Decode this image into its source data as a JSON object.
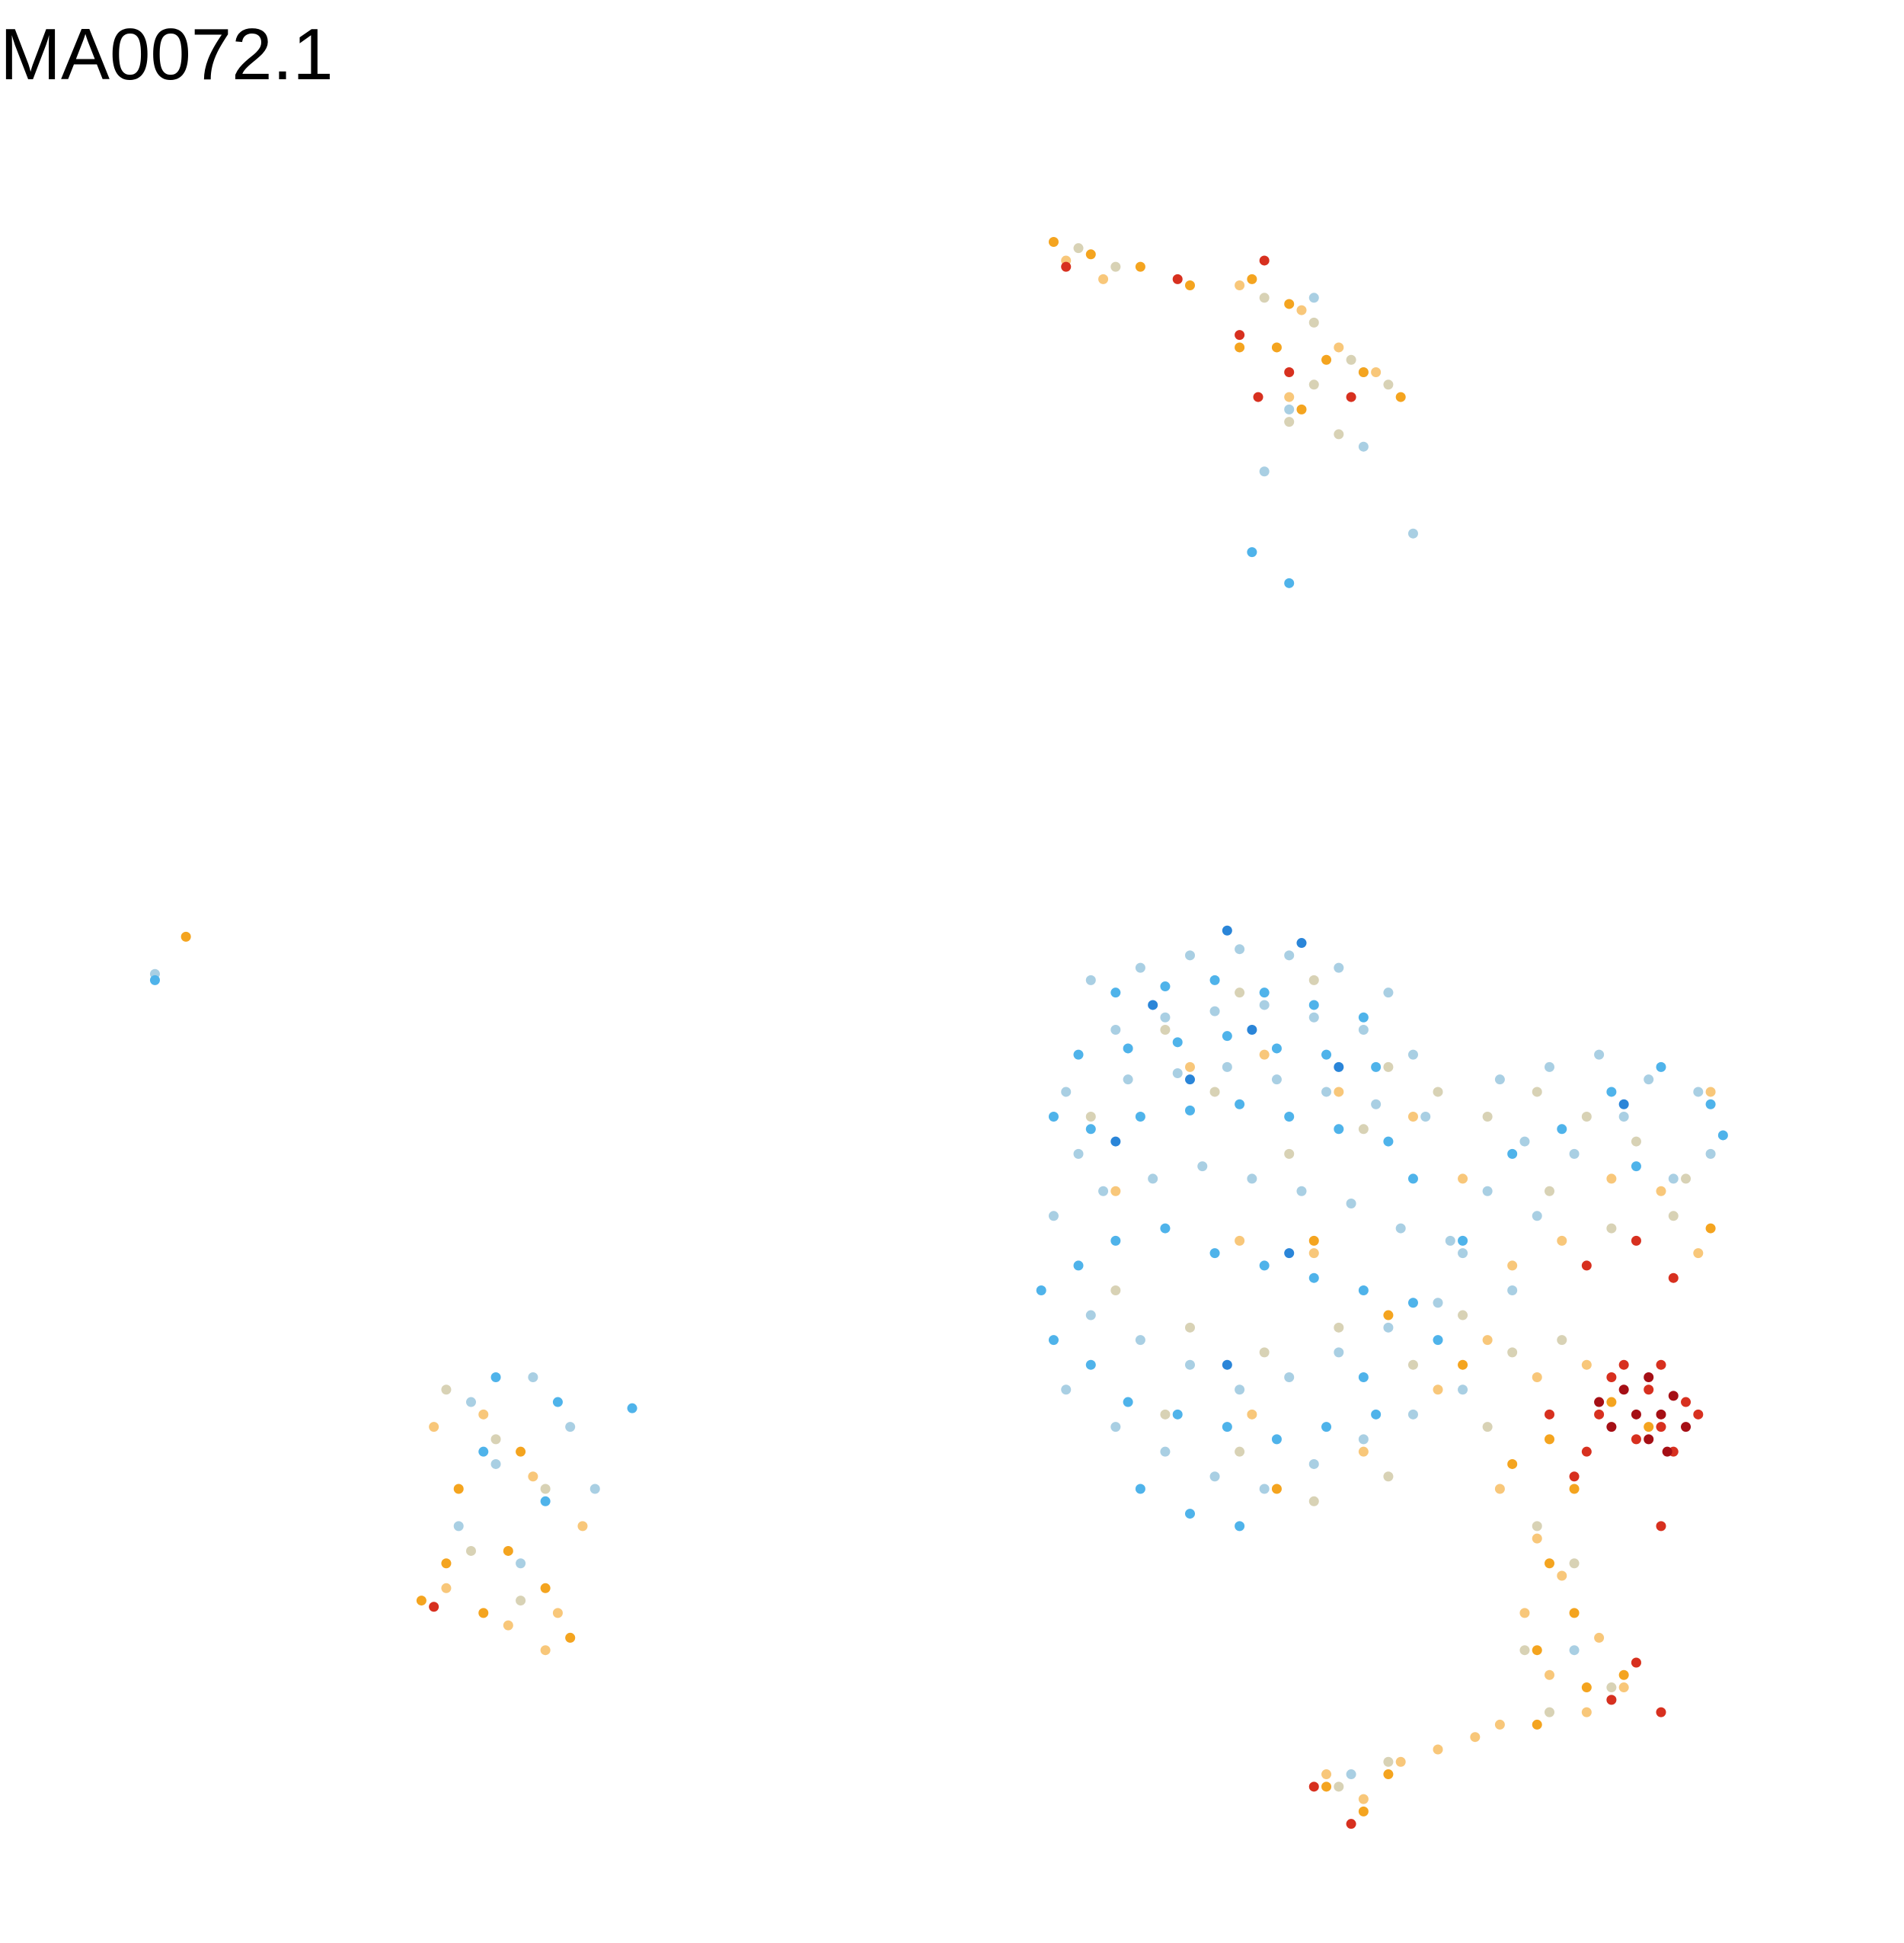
{
  "chart_data": {
    "type": "scatter",
    "title": "MA0072.1",
    "xlim": [
      0,
      1536
    ],
    "ylim": [
      1566,
      0
    ],
    "series": [
      {
        "color": "#a9cfe3",
        "x": [
          880,
          920,
          960,
          1000,
          1040,
          1080,
          1120,
          900,
          940,
          980,
          1020,
          1060,
          1100,
          1140,
          860,
          870,
          910,
          950,
          990,
          1030,
          1070,
          1110,
          1150,
          850,
          890,
          930,
          970,
          1010,
          1050,
          1090,
          1130,
          1170,
          1210,
          1250,
          1290,
          1330,
          1370,
          1230,
          1270,
          1310,
          1350,
          1380,
          1200,
          1240,
          1180,
          1220,
          880,
          920,
          960,
          1000,
          1040,
          1080,
          1120,
          1160,
          860,
          900,
          940,
          980,
          1020,
          1060,
          1100,
          1140,
          1180,
          430,
          380,
          460,
          400,
          480,
          370,
          420,
          1060,
          1100,
          1040,
          1020,
          125,
          1140,
          1100,
          1270,
          1300,
          1090
        ],
        "y": [
          790,
          780,
          770,
          765,
          770,
          780,
          800,
          830,
          820,
          815,
          810,
          820,
          830,
          850,
          880,
          930,
          870,
          865,
          860,
          870,
          880,
          890,
          900,
          980,
          960,
          950,
          940,
          950,
          960,
          970,
          990,
          1000,
          870,
          860,
          850,
          870,
          880,
          920,
          930,
          900,
          950,
          930,
          960,
          980,
          1010,
          1040,
          1060,
          1080,
          1100,
          1120,
          1110,
          1090,
          1070,
          1050,
          1120,
          1150,
          1170,
          1190,
          1200,
          1180,
          1160,
          1140,
          1120,
          1110,
          1130,
          1150,
          1180,
          1200,
          1230,
          1260,
          240,
          300,
          330,
          380,
          785,
          430,
          360,
          1330,
          1370,
          1430
        ]
      },
      {
        "color": "#4fb3ea",
        "x": [
          900,
          940,
          980,
          1020,
          1060,
          1100,
          870,
          910,
          950,
          990,
          1030,
          1070,
          1110,
          850,
          880,
          920,
          960,
          1000,
          1040,
          1080,
          1120,
          840,
          870,
          900,
          940,
          980,
          1020,
          1060,
          1100,
          1140,
          850,
          880,
          910,
          950,
          990,
          1030,
          1070,
          1110,
          920,
          960,
          1000,
          1300,
          1340,
          1380,
          1260,
          1320,
          1390,
          1180,
          1220,
          1140,
          400,
          450,
          510,
          390,
          440,
          1040,
          1010,
          125,
          1100,
          1160
        ],
        "y": [
          800,
          795,
          790,
          800,
          810,
          820,
          850,
          845,
          840,
          835,
          845,
          850,
          860,
          900,
          910,
          900,
          895,
          890,
          900,
          910,
          920,
          1040,
          1020,
          1000,
          990,
          1010,
          1020,
          1030,
          1040,
          1050,
          1080,
          1100,
          1130,
          1140,
          1150,
          1160,
          1150,
          1140,
          1200,
          1220,
          1230,
          880,
          860,
          890,
          910,
          940,
          915,
          1000,
          930,
          950,
          1110,
          1130,
          1135,
          1170,
          1210,
          470,
          445,
          790,
          1110,
          1080
        ]
      },
      {
        "color": "#2a85d8",
        "x": [
          990,
          1050,
          930,
          1010,
          1080,
          960,
          900,
          1040,
          990,
          1310
        ],
        "y": [
          750,
          760,
          810,
          830,
          860,
          870,
          920,
          1010,
          1100,
          890
        ]
      },
      {
        "color": "#d8d2b5",
        "x": [
          940,
          1000,
          1060,
          1120,
          880,
          980,
          1040,
          1100,
          1160,
          1200,
          1240,
          1280,
          1320,
          1360,
          1250,
          1300,
          1350,
          1180,
          1220,
          1260,
          900,
          960,
          1020,
          1080,
          1140,
          1200,
          940,
          1000,
          1060,
          1120,
          870,
          900,
          1020,
          1060,
          1090,
          1120,
          1060,
          1040,
          1080,
          360,
          400,
          440,
          380,
          420,
          460,
          1240,
          1270,
          1230,
          1300,
          1080,
          1120,
          1250
        ],
        "y": [
          830,
          800,
          790,
          860,
          900,
          880,
          930,
          910,
          880,
          900,
          880,
          900,
          920,
          950,
          960,
          990,
          980,
          1060,
          1090,
          1080,
          1040,
          1070,
          1090,
          1070,
          1100,
          1150,
          1140,
          1170,
          1210,
          1190,
          200,
          215,
          240,
          260,
          290,
          310,
          310,
          340,
          350,
          1120,
          1160,
          1200,
          1250,
          1290,
          1320,
          1230,
          1260,
          1330,
          1360,
          1440,
          1420,
          1380
        ]
      },
      {
        "color": "#f8c77a",
        "x": [
          960,
          1020,
          1080,
          1140,
          900,
          1000,
          1060,
          1180,
          1220,
          1260,
          1300,
          1340,
          1370,
          1380,
          1200,
          1240,
          1280,
          1160,
          1010,
          1100,
          1210,
          1240,
          1260,
          1230,
          1290,
          1320,
          1250,
          1280,
          1310,
          1210,
          1070,
          1100,
          1130,
          1160,
          1190,
          860,
          890,
          1000,
          1050,
          1080,
          1110,
          1040,
          350,
          390,
          430,
          470,
          360,
          410,
          450,
          440
        ],
        "y": [
          860,
          850,
          880,
          900,
          960,
          1000,
          1010,
          950,
          1020,
          1000,
          950,
          960,
          1010,
          880,
          1080,
          1110,
          1100,
          1120,
          1140,
          1170,
          1200,
          1240,
          1270,
          1300,
          1320,
          1340,
          1350,
          1380,
          1360,
          1390,
          1430,
          1450,
          1420,
          1410,
          1400,
          210,
          225,
          230,
          250,
          280,
          300,
          320,
          1150,
          1140,
          1190,
          1230,
          1280,
          1310,
          1300,
          1330
        ]
      },
      {
        "color": "#f4a41f",
        "x": [
          850,
          880,
          920,
          960,
          1010,
          1040,
          1030,
          1070,
          1100,
          1130,
          1050,
          1000,
          1060,
          1120,
          1180,
          1220,
          1250,
          1270,
          1300,
          1330,
          1250,
          1270,
          1240,
          1280,
          1310,
          1240,
          1070,
          1100,
          1120,
          1380,
          340,
          360,
          390,
          410,
          440,
          460,
          370,
          420,
          150,
          1030
        ],
        "y": [
          195,
          205,
          215,
          230,
          225,
          245,
          280,
          290,
          300,
          320,
          330,
          280,
          1000,
          1060,
          1100,
          1180,
          1160,
          1200,
          1130,
          1150,
          1260,
          1300,
          1330,
          1360,
          1350,
          1390,
          1440,
          1460,
          1430,
          990,
          1290,
          1260,
          1300,
          1250,
          1280,
          1320,
          1200,
          1170,
          755,
          1200
        ]
      },
      {
        "color": "#d7301f",
        "x": [
          860,
          950,
          1000,
          1020,
          1040,
          1090,
          1015,
          1280,
          1320,
          1350,
          1300,
          1330,
          1360,
          1340,
          1290,
          1320,
          1350,
          1370,
          1310,
          1340,
          1280,
          1270,
          1320,
          1300,
          1340,
          1250,
          1060,
          1090,
          1340,
          350
        ],
        "y": [
          215,
          225,
          270,
          210,
          300,
          320,
          320,
          1020,
          1000,
          1030,
          1110,
          1120,
          1130,
          1150,
          1140,
          1160,
          1170,
          1140,
          1100,
          1100,
          1170,
          1190,
          1340,
          1370,
          1380,
          1140,
          1440,
          1470,
          1230,
          1295
        ]
      },
      {
        "color": "#a50f15",
        "x": [
          1310,
          1330,
          1350,
          1320,
          1340,
          1300,
          1360,
          1330,
          1290,
          1345
        ],
        "y": [
          1120,
          1110,
          1125,
          1140,
          1140,
          1150,
          1150,
          1160,
          1130,
          1170
        ]
      }
    ]
  }
}
